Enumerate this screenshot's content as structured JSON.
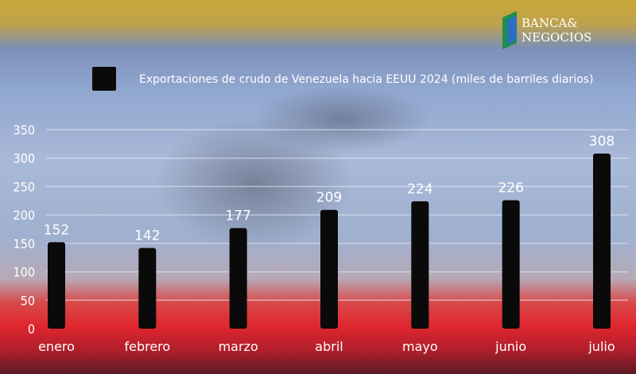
{
  "brand": {
    "name_line1": "BANCA&",
    "name_line2": "NEGOCIOS"
  },
  "chart_data": {
    "type": "bar",
    "title": "",
    "legend": [
      "Exportaciones de crudo de Venezuela hacia EEUU 2024 (miles de barriles diarios)"
    ],
    "legend_position": "top",
    "categories": [
      "enero",
      "febrero",
      "marzo",
      "abril",
      "mayo",
      "junio",
      "julio"
    ],
    "series": [
      {
        "name": "Exportaciones de crudo de Venezuela hacia EEUU 2024 (miles de barriles diarios)",
        "values": [
          152,
          142,
          177,
          209,
          224,
          226,
          308
        ]
      }
    ],
    "ylim": [
      0,
      350
    ],
    "yticks": [
      0,
      50,
      100,
      150,
      200,
      250,
      300,
      350
    ],
    "grid": true,
    "data_labels": true,
    "xlabel": "",
    "ylabel": "",
    "colors": {
      "bar": "#0a0a0a",
      "text": "#ffffff",
      "grid": "#e6ecf5"
    }
  }
}
